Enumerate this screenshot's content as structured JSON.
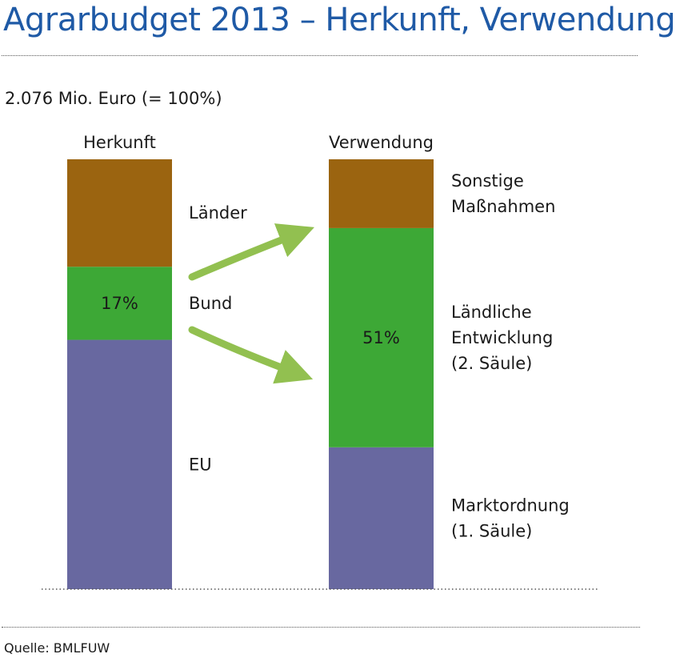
{
  "title": "Agrarbudget 2013 – Herkunft, Verwendung",
  "subtitle": "2.076 Mio. Euro (= 100%)",
  "source": "Quelle: BMLFUW",
  "colors": {
    "title": "#1f5aa6",
    "brown": "#9b6410",
    "green": "#3da836",
    "purple": "#6868a0",
    "arrow": "#92c050"
  },
  "chart_data": {
    "type": "bar",
    "stacked": true,
    "unit": "%",
    "ylim": [
      0,
      100
    ],
    "categories": [
      "Herkunft",
      "Verwendung"
    ],
    "series": [
      {
        "name": "Herkunft",
        "segments": [
          {
            "name": "EU",
            "value": 58,
            "color": "#6868a0",
            "label": ""
          },
          {
            "name": "Bund",
            "value": 17,
            "color": "#3da836",
            "label": "17%"
          },
          {
            "name": "Länder",
            "value": 25,
            "color": "#9b6410",
            "label": ""
          }
        ]
      },
      {
        "name": "Verwendung",
        "segments": [
          {
            "name": "Marktordnung (1. Säule)",
            "value": 33,
            "color": "#6868a0",
            "label": ""
          },
          {
            "name": "Ländliche Entwicklung (2. Säule)",
            "value": 51,
            "color": "#3da836",
            "label": "51%"
          },
          {
            "name": "Sonstige Maßnahmen",
            "value": 16,
            "color": "#9b6410",
            "label": ""
          }
        ]
      }
    ],
    "segment_labels": [
      [
        "EU"
      ],
      [
        "Bund"
      ],
      [
        "Länder"
      ],
      [
        "Marktordnung",
        "(1. Säule)"
      ],
      [
        "Ländliche",
        "Entwicklung",
        "(2. Säule)"
      ],
      [
        "Sonstige",
        "Maßnahmen"
      ]
    ]
  }
}
